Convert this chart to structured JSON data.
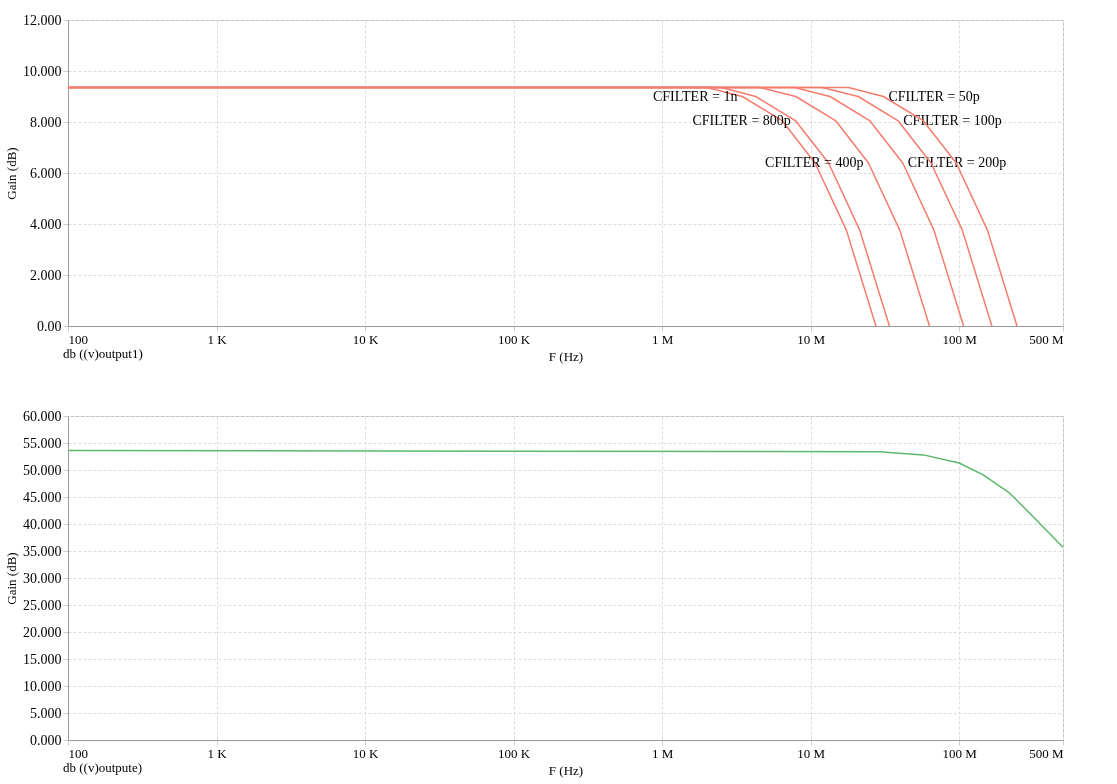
{
  "chart_data": [
    {
      "type": "line",
      "ylabel": "Gain (dB)",
      "xlabel": "F (Hz)",
      "log": "x",
      "grid": true,
      "legend": false,
      "marker": "none",
      "line_style": "solid",
      "xlim": [
        100,
        500000000
      ],
      "xticks": [
        100,
        {
          "value": 1000,
          "label": "1 K"
        },
        {
          "value": 10000,
          "label": "10 K"
        },
        {
          "value": 100000,
          "label": "100 K"
        },
        {
          "value": 1000000,
          "label": "1 M"
        },
        {
          "value": 10000000,
          "label": "10 M"
        },
        {
          "value": 100000000,
          "label": "100 M"
        },
        {
          "value": 500000000,
          "label": "500 M"
        }
      ],
      "ylim": [
        0,
        12
      ],
      "yticks": [
        {
          "value": 0,
          "label": "0.00"
        },
        {
          "value": 2,
          "label": "2.000"
        },
        {
          "value": 4,
          "label": "4.000"
        },
        {
          "value": 6,
          "label": "6.000"
        },
        {
          "value": 8,
          "label": "8.000"
        },
        {
          "value": 10,
          "label": "10.000"
        },
        {
          "value": 12,
          "label": "12.000"
        }
      ],
      "annotations": [
        "db ((v)output1)"
      ],
      "series": [
        {
          "name": "CFILTER = 1n",
          "color": "#f47c6c",
          "x": [
            100,
            2000000,
            3470000,
            6460000,
            10700000,
            17400000,
            27500000
          ],
          "values": [
            9.35,
            9.35,
            9.0,
            8.04,
            6.39,
            3.76,
            0
          ]
        },
        {
          "name": "CFILTER = 800p",
          "color": "#f47c6c",
          "x": [
            100,
            2500000,
            4270000,
            7940000,
            13200000,
            21400000,
            33900000
          ],
          "values": [
            9.35,
            9.35,
            9.0,
            8.04,
            6.39,
            3.76,
            0
          ]
        },
        {
          "name": "CFILTER = 400p",
          "color": "#f47c6c",
          "x": [
            100,
            4600000,
            7940000,
            14800000,
            24500000,
            39800000,
            63100000
          ],
          "values": [
            9.35,
            9.35,
            9.0,
            8.04,
            6.39,
            3.76,
            0
          ]
        },
        {
          "name": "CFILTER = 200p",
          "color": "#f47c6c",
          "x": [
            100,
            7800000,
            13500000,
            25100000,
            41700000,
            67600000,
            107000000
          ],
          "values": [
            9.35,
            9.35,
            9.0,
            8.04,
            6.39,
            3.76,
            0
          ]
        },
        {
          "name": "CFILTER = 100p",
          "color": "#f47c6c",
          "x": [
            100,
            12000000,
            20900000,
            38900000,
            64600000,
            105000000,
            166000000
          ],
          "values": [
            9.35,
            9.35,
            9.0,
            8.04,
            6.39,
            3.76,
            0
          ]
        },
        {
          "name": "CFILTER = 50p",
          "color": "#f47c6c",
          "x": [
            100,
            18000000,
            30900000,
            57500000,
            95500000,
            155000000,
            245000000
          ],
          "values": [
            9.35,
            9.35,
            9.0,
            8.04,
            6.39,
            3.76,
            0
          ]
        }
      ]
    },
    {
      "type": "line",
      "ylabel": "Gain (dB)",
      "xlabel": "F (Hz)",
      "log": "x",
      "grid": true,
      "legend": false,
      "marker": "none",
      "line_style": "solid",
      "xlim": [
        100,
        500000000
      ],
      "xticks": [
        100,
        {
          "value": 1000,
          "label": "1 K"
        },
        {
          "value": 10000,
          "label": "10 K"
        },
        {
          "value": 100000,
          "label": "100 K"
        },
        {
          "value": 1000000,
          "label": "1 M"
        },
        {
          "value": 10000000,
          "label": "10 M"
        },
        {
          "value": 100000000,
          "label": "100 M"
        },
        {
          "value": 500000000,
          "label": "500 M"
        }
      ],
      "ylim": [
        0,
        60
      ],
      "yticks": [
        {
          "value": 0,
          "label": "0.000"
        },
        {
          "value": 5,
          "label": "5.000"
        },
        {
          "value": 10,
          "label": "10.000"
        },
        {
          "value": 15,
          "label": "15.000"
        },
        {
          "value": 20,
          "label": "20.000"
        },
        {
          "value": 25,
          "label": "25.000"
        },
        {
          "value": 30,
          "label": "30.000"
        },
        {
          "value": 35,
          "label": "35.000"
        },
        {
          "value": 40,
          "label": "40.000"
        },
        {
          "value": 45,
          "label": "45.000"
        },
        {
          "value": 50,
          "label": "50.000"
        },
        {
          "value": 55,
          "label": "55.000"
        },
        {
          "value": 60,
          "label": "60.000"
        }
      ],
      "annotations": [
        "db ((v)outpute)"
      ],
      "series": [
        {
          "color": "#5cb86a",
          "x": [
            100,
            28800000,
            57500000,
            100000000,
            145000000,
            219000000,
            316000000,
            500000000
          ],
          "values": [
            53.6,
            53.4,
            52.8,
            51.3,
            49.1,
            45.7,
            41.3,
            35.7
          ]
        }
      ]
    }
  ]
}
